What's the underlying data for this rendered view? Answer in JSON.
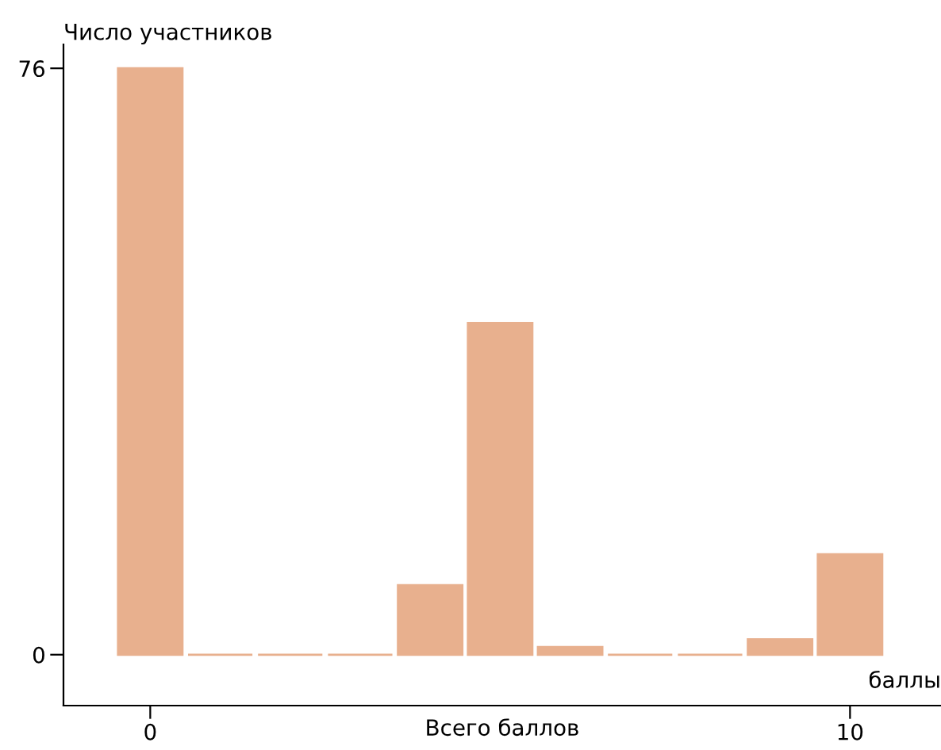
{
  "chart_data": {
    "type": "bar",
    "ylabel": "Число участников",
    "xlabel": "Всего баллов",
    "annotations": [
      "баллы"
    ],
    "x": [
      0,
      1,
      2,
      3,
      4,
      5,
      6,
      7,
      8,
      9,
      10
    ],
    "values": [
      76,
      0,
      0,
      0,
      9,
      43,
      1,
      0,
      0,
      2,
      13
    ],
    "color": "#e8b08e",
    "xlim": [
      -1.24,
      11.3
    ],
    "xticks": [
      0,
      10
    ],
    "ylim": [
      -6.6,
      79.1
    ],
    "yticks": [
      0,
      76
    ],
    "grid": false,
    "legend": false
  }
}
